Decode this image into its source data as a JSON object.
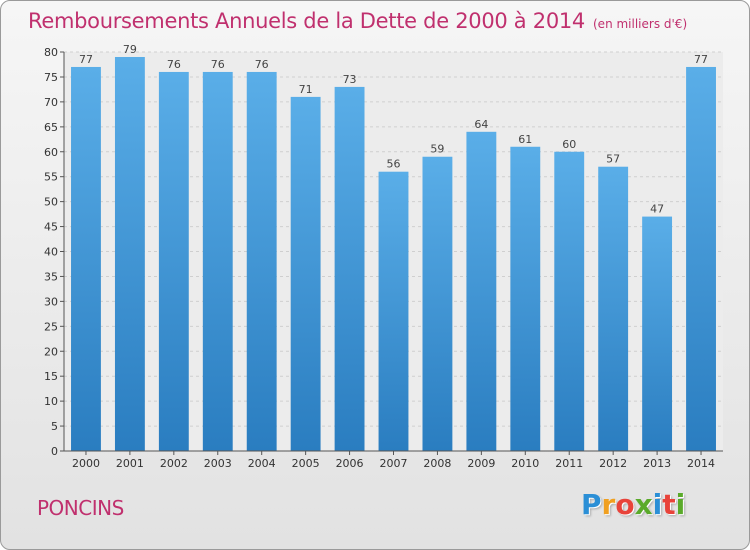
{
  "chart_data": {
    "type": "bar",
    "title": "Remboursements Annuels de la Dette de 2000 à 2014",
    "subtitle": "(en milliers d'€)",
    "categories": [
      "2000",
      "2001",
      "2002",
      "2003",
      "2004",
      "2005",
      "2006",
      "2007",
      "2008",
      "2009",
      "2010",
      "2011",
      "2012",
      "2013",
      "2014"
    ],
    "values": [
      77,
      79,
      76,
      76,
      76,
      71,
      73,
      56,
      59,
      64,
      61,
      60,
      57,
      47,
      77
    ],
    "xlabel": "",
    "ylabel": "",
    "ylim": [
      0,
      80
    ],
    "ytick_step": 5,
    "grid": true,
    "bar_color_top": "#5aaee8",
    "bar_color_bottom": "#2a7dc0"
  },
  "footer": {
    "place": "PONCINS",
    "logo_letters": [
      "P",
      "r",
      "o",
      "x",
      "i",
      "t",
      "i"
    ],
    "logo_colors": [
      "#2b8fd6",
      "#f0a020",
      "#e8433a",
      "#5aaa2a",
      "#2b8fd6",
      "#e8433a",
      "#5aaa2a"
    ]
  }
}
